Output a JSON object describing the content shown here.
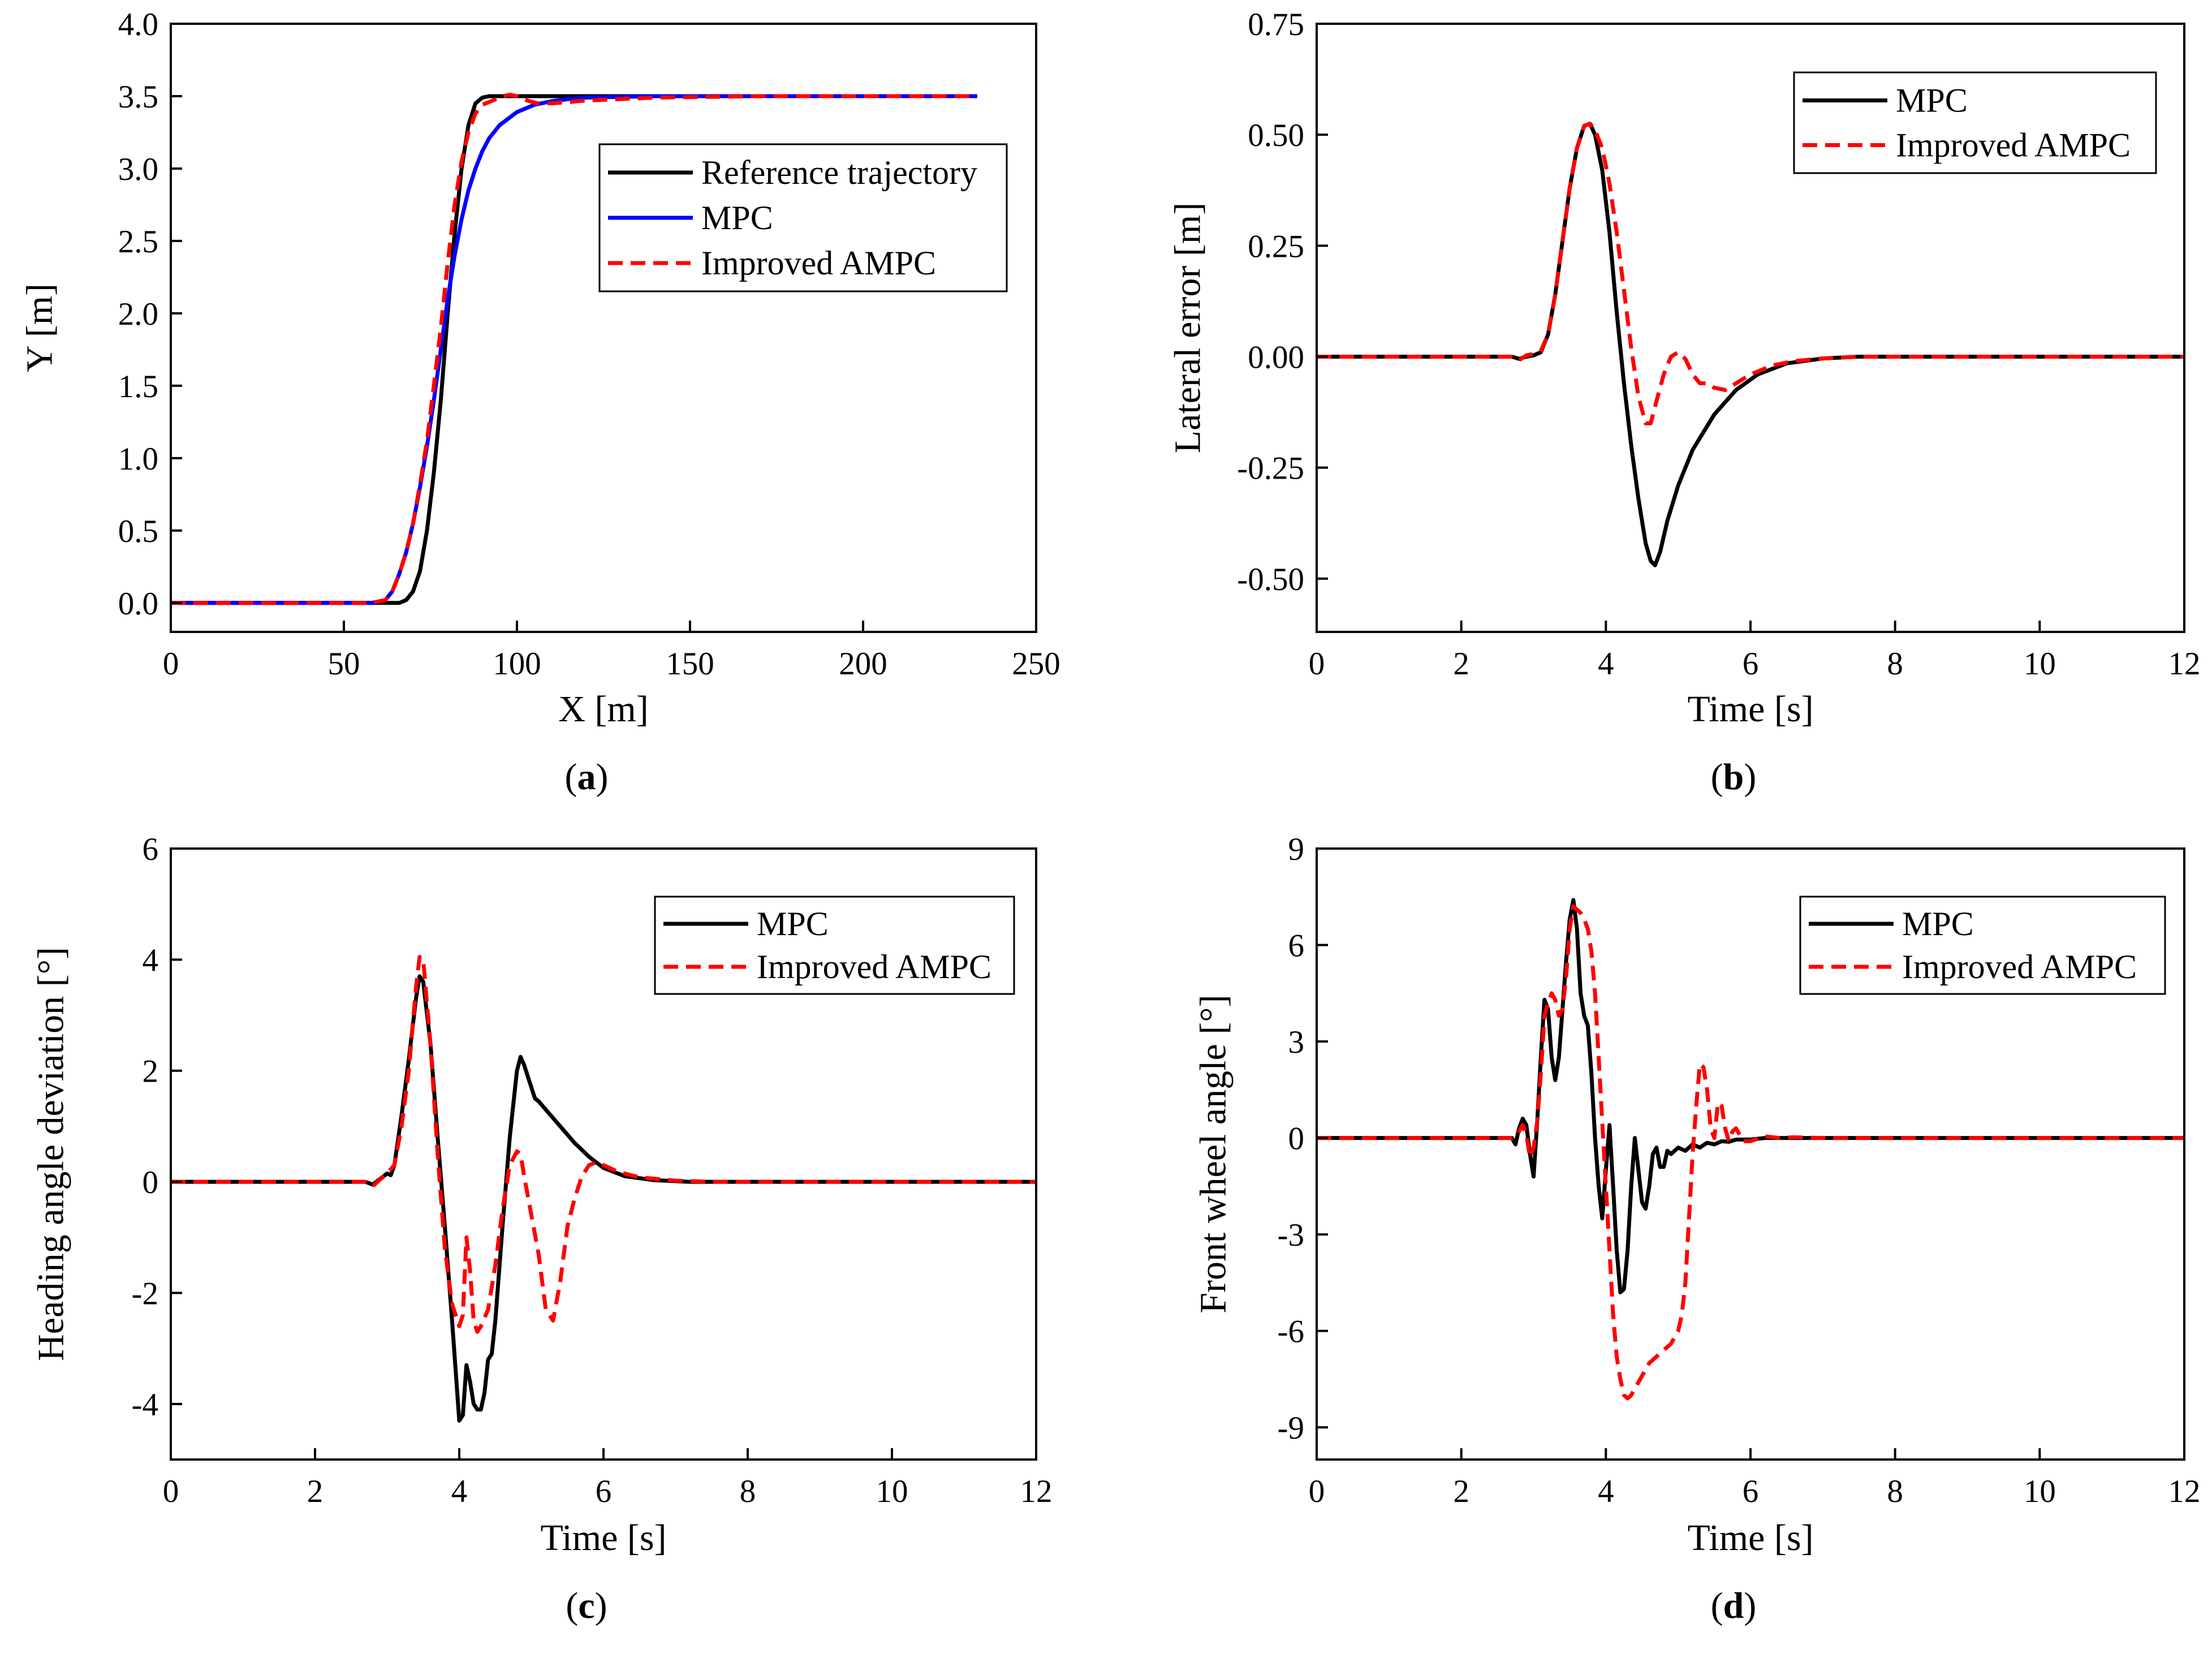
{
  "colors": {
    "reference": "#000000",
    "mpc": "#0000ff",
    "mpc_black": "#000000",
    "ampc": "#ff0000"
  },
  "chart_data": [
    {
      "panel": "a",
      "caption": "(a)",
      "caption_letter": "a",
      "type": "line",
      "xlabel": "X [m]",
      "ylabel": "Y [m]",
      "xlim": [
        0,
        250
      ],
      "ylim": [
        -0.2,
        4.0
      ],
      "xticks": [
        0,
        50,
        100,
        150,
        200,
        250
      ],
      "xtick_labels": [
        "0",
        "50",
        "100",
        "150",
        "200",
        "250"
      ],
      "yticks": [
        0.0,
        0.5,
        1.0,
        1.5,
        2.0,
        2.5,
        3.0,
        3.5,
        4.0
      ],
      "ytick_labels": [
        "0.0",
        "0.5",
        "1.0",
        "1.5",
        "2.0",
        "2.5",
        "3.0",
        "3.5",
        "4.0"
      ],
      "legend": {
        "position": "top-right",
        "entries": [
          "Reference trajectory",
          "MPC",
          "Improved AMPC"
        ]
      },
      "series": [
        {
          "name": "Reference trajectory",
          "color": "#000000",
          "dash": "solid",
          "x": [
            0,
            60,
            66,
            68,
            70,
            72,
            74,
            76,
            78,
            80,
            82,
            84,
            86,
            88,
            90,
            92,
            94,
            100,
            150,
            200,
            233
          ],
          "y": [
            0,
            0,
            0,
            0.02,
            0.08,
            0.22,
            0.5,
            0.9,
            1.4,
            2.0,
            2.55,
            3.0,
            3.3,
            3.45,
            3.49,
            3.5,
            3.5,
            3.5,
            3.5,
            3.5,
            3.5
          ]
        },
        {
          "name": "MPC",
          "color": "#0000ff",
          "dash": "solid",
          "x": [
            0,
            58,
            62,
            64,
            66,
            68,
            70,
            72,
            74,
            76,
            78,
            80,
            82,
            84,
            86,
            88,
            90,
            92,
            95,
            100,
            105,
            110,
            115,
            120,
            130,
            140,
            150,
            170,
            200,
            233
          ],
          "y": [
            0,
            0,
            0.02,
            0.08,
            0.2,
            0.35,
            0.55,
            0.8,
            1.08,
            1.4,
            1.75,
            2.1,
            2.4,
            2.65,
            2.85,
            3.0,
            3.12,
            3.21,
            3.3,
            3.39,
            3.44,
            3.465,
            3.48,
            3.49,
            3.495,
            3.5,
            3.5,
            3.5,
            3.5,
            3.5
          ]
        },
        {
          "name": "Improved AMPC",
          "color": "#ff0000",
          "dash": "dashed",
          "x": [
            0,
            58,
            62,
            64,
            66,
            68,
            70,
            72,
            74,
            76,
            78,
            80,
            82,
            84,
            86,
            88,
            90,
            92,
            94,
            96,
            98,
            100,
            103,
            106,
            110,
            120,
            140,
            170,
            200,
            233
          ],
          "y": [
            0,
            0,
            0.02,
            0.08,
            0.2,
            0.35,
            0.55,
            0.82,
            1.12,
            1.5,
            1.9,
            2.35,
            2.75,
            3.05,
            3.25,
            3.38,
            3.44,
            3.46,
            3.48,
            3.5,
            3.51,
            3.5,
            3.47,
            3.45,
            3.45,
            3.47,
            3.49,
            3.5,
            3.5,
            3.5
          ]
        }
      ]
    },
    {
      "panel": "b",
      "caption": "(b)",
      "caption_letter": "b",
      "type": "line",
      "xlabel": "Time [s]",
      "ylabel": "Lateral error [m]",
      "xlim": [
        0,
        12
      ],
      "ylim": [
        -0.62,
        0.75
      ],
      "xticks": [
        0,
        2,
        4,
        6,
        8,
        10,
        12
      ],
      "xtick_labels": [
        "0",
        "2",
        "4",
        "6",
        "8",
        "10",
        "12"
      ],
      "yticks": [
        -0.5,
        -0.25,
        0.0,
        0.25,
        0.5,
        0.75
      ],
      "ytick_labels": [
        "-0.50",
        "-0.25",
        "0.00",
        "0.25",
        "0.50",
        "0.75"
      ],
      "legend": {
        "position": "top-right",
        "entries": [
          "MPC",
          "Improved AMPC"
        ]
      },
      "series": [
        {
          "name": "MPC",
          "color": "#000000",
          "dash": "solid",
          "x": [
            0,
            2.7,
            2.8,
            2.9,
            3.0,
            3.1,
            3.2,
            3.3,
            3.4,
            3.5,
            3.6,
            3.7,
            3.78,
            3.85,
            3.95,
            4.05,
            4.15,
            4.25,
            4.35,
            4.45,
            4.55,
            4.62,
            4.68,
            4.75,
            4.85,
            5.0,
            5.2,
            5.5,
            5.8,
            6.1,
            6.5,
            7.0,
            7.5,
            8,
            12
          ],
          "y": [
            0,
            0,
            -0.005,
            0,
            0.003,
            0.01,
            0.05,
            0.14,
            0.26,
            0.38,
            0.47,
            0.52,
            0.525,
            0.5,
            0.42,
            0.28,
            0.1,
            -0.06,
            -0.2,
            -0.32,
            -0.42,
            -0.46,
            -0.47,
            -0.44,
            -0.37,
            -0.29,
            -0.21,
            -0.13,
            -0.075,
            -0.04,
            -0.015,
            -0.004,
            0,
            0,
            0
          ]
        },
        {
          "name": "Improved AMPC",
          "color": "#ff0000",
          "dash": "dashed",
          "x": [
            0,
            2.7,
            2.8,
            2.9,
            3.0,
            3.1,
            3.2,
            3.3,
            3.4,
            3.5,
            3.6,
            3.7,
            3.78,
            3.85,
            3.95,
            4.05,
            4.15,
            4.25,
            4.35,
            4.45,
            4.55,
            4.62,
            4.7,
            4.8,
            4.9,
            5.0,
            5.1,
            5.2,
            5.3,
            5.4,
            5.5,
            5.65,
            5.8,
            6.0,
            6.3,
            6.6,
            7.0,
            7.5,
            8,
            12
          ],
          "y": [
            0,
            0,
            -0.008,
            0.003,
            0.006,
            0.013,
            0.05,
            0.14,
            0.26,
            0.38,
            0.47,
            0.52,
            0.525,
            0.51,
            0.47,
            0.39,
            0.28,
            0.15,
            0.02,
            -0.09,
            -0.15,
            -0.15,
            -0.1,
            -0.04,
            0.0,
            0.01,
            -0.005,
            -0.04,
            -0.06,
            -0.06,
            -0.07,
            -0.075,
            -0.06,
            -0.04,
            -0.02,
            -0.01,
            -0.004,
            0,
            0,
            0
          ]
        }
      ]
    },
    {
      "panel": "c",
      "caption": "(c)",
      "caption_letter": "c",
      "type": "line",
      "xlabel": "Time [s]",
      "ylabel": "Heading angle deviation [°]",
      "xlim": [
        0,
        12
      ],
      "ylim": [
        -5,
        6
      ],
      "xticks": [
        0,
        2,
        4,
        6,
        8,
        10,
        12
      ],
      "xtick_labels": [
        "0",
        "2",
        "4",
        "6",
        "8",
        "10",
        "12"
      ],
      "yticks": [
        -4,
        -2,
        0,
        2,
        4,
        6
      ],
      "ytick_labels": [
        "-4",
        "-2",
        "0",
        "2",
        "4",
        "6"
      ],
      "legend": {
        "position": "top-right",
        "entries": [
          "MPC",
          "Improved AMPC"
        ]
      },
      "series": [
        {
          "name": "MPC",
          "color": "#000000",
          "dash": "solid",
          "x": [
            0,
            2.7,
            2.8,
            2.9,
            3.0,
            3.05,
            3.1,
            3.2,
            3.3,
            3.4,
            3.45,
            3.5,
            3.6,
            3.7,
            3.8,
            3.9,
            4.0,
            4.05,
            4.1,
            4.15,
            4.2,
            4.25,
            4.3,
            4.35,
            4.4,
            4.45,
            4.5,
            4.6,
            4.7,
            4.8,
            4.85,
            4.9,
            5.0,
            5.05,
            5.1,
            5.2,
            5.4,
            5.6,
            5.8,
            6.0,
            6.3,
            6.7,
            7.2,
            8,
            12
          ],
          "y": [
            0,
            0,
            -0.05,
            0.05,
            0.15,
            0.12,
            0.3,
            1.2,
            2.2,
            3.3,
            3.7,
            3.6,
            2.5,
            0.8,
            -0.8,
            -2.5,
            -4.3,
            -4.2,
            -3.3,
            -3.6,
            -4.0,
            -4.1,
            -4.1,
            -3.8,
            -3.2,
            -3.1,
            -2.5,
            -0.8,
            0.8,
            2.0,
            2.25,
            2.1,
            1.7,
            1.5,
            1.45,
            1.3,
            1.0,
            0.7,
            0.45,
            0.25,
            0.1,
            0.03,
            0,
            0,
            0
          ]
        },
        {
          "name": "Improved AMPC",
          "color": "#ff0000",
          "dash": "dashed",
          "x": [
            0,
            2.7,
            2.8,
            2.9,
            3.0,
            3.1,
            3.2,
            3.3,
            3.4,
            3.45,
            3.5,
            3.6,
            3.7,
            3.8,
            3.9,
            4.0,
            4.05,
            4.1,
            4.15,
            4.2,
            4.25,
            4.3,
            4.4,
            4.5,
            4.6,
            4.7,
            4.8,
            4.85,
            4.9,
            5.0,
            5.1,
            5.2,
            5.3,
            5.4,
            5.5,
            5.6,
            5.7,
            5.8,
            5.9,
            6.0,
            6.2,
            6.5,
            7.0,
            7.5,
            12
          ],
          "y": [
            0,
            0,
            -0.08,
            0.04,
            0.15,
            0.3,
            1.0,
            2.0,
            3.5,
            4.05,
            4.0,
            2.5,
            0.5,
            -1.2,
            -2.2,
            -2.6,
            -2.4,
            -1.0,
            -1.6,
            -2.5,
            -2.7,
            -2.6,
            -2.3,
            -1.5,
            -0.5,
            0.3,
            0.55,
            0.5,
            0.1,
            -0.6,
            -1.3,
            -2.3,
            -2.5,
            -1.8,
            -0.8,
            -0.3,
            0.1,
            0.3,
            0.35,
            0.3,
            0.18,
            0.08,
            0.02,
            0,
            0
          ]
        }
      ]
    },
    {
      "panel": "d",
      "caption": "(d)",
      "caption_letter": "d",
      "type": "line",
      "xlabel": "Time [s]",
      "ylabel": "Front wheel angle [°]",
      "xlim": [
        0,
        12
      ],
      "ylim": [
        -10,
        9
      ],
      "xticks": [
        0,
        2,
        4,
        6,
        8,
        10,
        12
      ],
      "xtick_labels": [
        "0",
        "2",
        "4",
        "6",
        "8",
        "10",
        "12"
      ],
      "yticks": [
        -9,
        -6,
        -3,
        0,
        3,
        6,
        9
      ],
      "ytick_labels": [
        "-9",
        "-6",
        "-3",
        "0",
        "3",
        "6",
        "9"
      ],
      "legend": {
        "position": "top-right",
        "entries": [
          "MPC",
          "Improved AMPC"
        ]
      },
      "series": [
        {
          "name": "MPC",
          "color": "#000000",
          "dash": "solid",
          "x": [
            0,
            2.7,
            2.75,
            2.8,
            2.85,
            2.9,
            2.95,
            3.0,
            3.05,
            3.1,
            3.15,
            3.2,
            3.25,
            3.3,
            3.35,
            3.4,
            3.45,
            3.5,
            3.55,
            3.6,
            3.65,
            3.7,
            3.75,
            3.8,
            3.85,
            3.9,
            3.95,
            4.0,
            4.05,
            4.1,
            4.15,
            4.2,
            4.25,
            4.3,
            4.35,
            4.4,
            4.45,
            4.5,
            4.55,
            4.6,
            4.65,
            4.7,
            4.75,
            4.8,
            4.85,
            4.9,
            5.0,
            5.1,
            5.2,
            5.3,
            5.4,
            5.5,
            5.6,
            5.7,
            5.8,
            6.0,
            6.2,
            6.5,
            7.0,
            12
          ],
          "y": [
            0,
            0,
            -0.2,
            0.3,
            0.6,
            0.4,
            -0.5,
            -1.2,
            0.5,
            2.5,
            4.3,
            4.0,
            2.5,
            1.8,
            2.5,
            4.0,
            5.5,
            6.8,
            7.4,
            6.5,
            4.5,
            3.8,
            3.5,
            2.0,
            0.0,
            -1.5,
            -2.5,
            -1.0,
            0.4,
            -1.5,
            -3.5,
            -4.8,
            -4.7,
            -3.5,
            -1.5,
            0.0,
            -1.0,
            -2.0,
            -2.2,
            -1.5,
            -0.5,
            -0.3,
            -0.9,
            -0.9,
            -0.4,
            -0.5,
            -0.3,
            -0.4,
            -0.2,
            -0.3,
            -0.15,
            -0.2,
            -0.1,
            -0.12,
            -0.05,
            -0.05,
            0,
            0,
            0,
            0
          ]
        },
        {
          "name": "Improved AMPC",
          "color": "#ff0000",
          "dash": "dashed",
          "x": [
            0,
            2.7,
            2.8,
            2.85,
            2.9,
            2.95,
            3.0,
            3.05,
            3.1,
            3.15,
            3.2,
            3.25,
            3.3,
            3.35,
            3.4,
            3.45,
            3.5,
            3.55,
            3.6,
            3.65,
            3.7,
            3.75,
            3.8,
            3.85,
            3.9,
            3.95,
            4.0,
            4.05,
            4.1,
            4.15,
            4.2,
            4.25,
            4.3,
            4.35,
            4.4,
            4.45,
            4.5,
            4.6,
            4.7,
            4.8,
            4.9,
            5.0,
            5.05,
            5.1,
            5.15,
            5.2,
            5.25,
            5.3,
            5.35,
            5.4,
            5.45,
            5.5,
            5.55,
            5.6,
            5.65,
            5.7,
            5.75,
            5.8,
            5.85,
            5.9,
            6.0,
            6.2,
            6.4,
            6.6,
            7.0,
            12
          ],
          "y": [
            0,
            0,
            0.2,
            0.4,
            0.1,
            -0.6,
            -0.3,
            0.5,
            2.0,
            3.8,
            4.2,
            4.5,
            4.3,
            3.8,
            4.0,
            5.0,
            6.5,
            7.2,
            7.1,
            7.0,
            6.8,
            6.5,
            5.8,
            4.5,
            2.5,
            0.5,
            -1.5,
            -3.5,
            -5.5,
            -6.8,
            -7.5,
            -8.0,
            -8.1,
            -8.0,
            -7.8,
            -7.6,
            -7.4,
            -7.0,
            -6.8,
            -6.6,
            -6.4,
            -6.0,
            -5.5,
            -4.5,
            -2.5,
            -0.5,
            1.0,
            2.3,
            2.2,
            1.5,
            0.3,
            0.0,
            1.1,
            1.0,
            0.3,
            -0.1,
            0.2,
            0.3,
            0.1,
            -0.1,
            -0.1,
            0.05,
            0.0,
            0.02,
            0,
            0
          ]
        }
      ]
    }
  ]
}
